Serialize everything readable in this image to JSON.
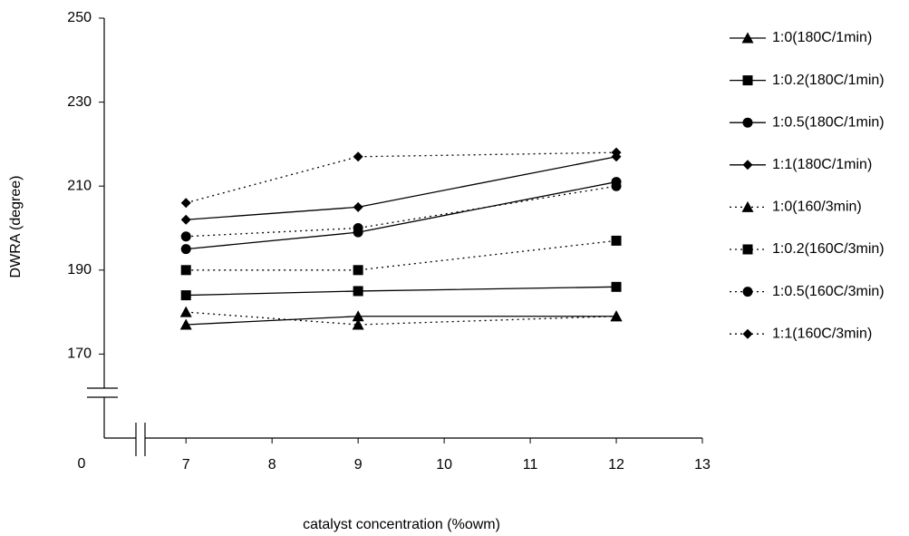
{
  "chart_data": {
    "type": "line",
    "x_label": "catalyst concentration (%owm)",
    "y_label": "DWRA (degree)",
    "origin_label": "0",
    "x": [
      7,
      9,
      12
    ],
    "xlim": [
      6.05,
      13
    ],
    "xticks": [
      7,
      8,
      9,
      10,
      11,
      12,
      13
    ],
    "ylim": [
      150,
      250
    ],
    "yticks": [
      170,
      190,
      210,
      230,
      250
    ],
    "grid": false,
    "legend": "right",
    "series": [
      {
        "name": "1:0(180C/1min)",
        "color": "#000000",
        "line_style": "solid",
        "marker": "triangle",
        "values": [
          177,
          179,
          179
        ]
      },
      {
        "name": "1:0.2(180C/1min)",
        "color": "#000000",
        "line_style": "solid",
        "marker": "square",
        "values": [
          184,
          185,
          186
        ]
      },
      {
        "name": "1:0.5(180C/1min)",
        "color": "#000000",
        "line_style": "solid",
        "marker": "circle",
        "values": [
          195,
          199,
          211
        ]
      },
      {
        "name": "1:1(180C/1min)",
        "color": "#000000",
        "line_style": "solid",
        "marker": "diamond",
        "values": [
          202,
          205,
          217
        ]
      },
      {
        "name": "1:0(160/3min)",
        "color": "#000000",
        "line_style": "dotted",
        "marker": "triangle",
        "values": [
          180,
          177,
          179
        ]
      },
      {
        "name": "1:0.2(160C/3min)",
        "color": "#000000",
        "line_style": "dotted",
        "marker": "square",
        "values": [
          190,
          190,
          197
        ]
      },
      {
        "name": "1:0.5(160C/3min)",
        "color": "#000000",
        "line_style": "dotted",
        "marker": "circle",
        "values": [
          198,
          200,
          210
        ]
      },
      {
        "name": "1:1(160C/3min)",
        "color": "#000000",
        "line_style": "dotted",
        "marker": "diamond",
        "values": [
          206,
          217,
          218
        ]
      }
    ]
  }
}
